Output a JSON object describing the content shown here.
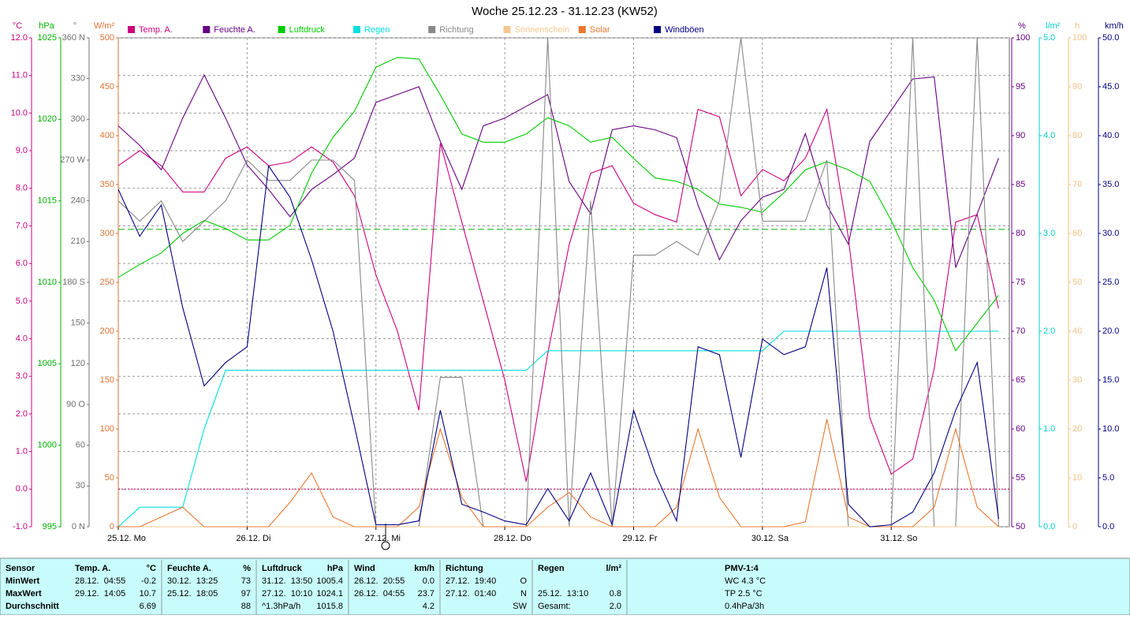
{
  "chart_data": {
    "type": "line",
    "title": "Woche 25.12.23 - 31.12.23 (KW52)",
    "x": [
      0,
      4,
      8,
      12,
      16,
      20,
      24,
      28,
      32,
      36,
      40,
      44,
      48,
      52,
      56,
      60,
      64,
      68,
      72,
      76,
      80,
      84,
      88,
      92,
      96,
      100,
      104,
      108,
      112,
      116,
      120,
      124,
      128,
      132,
      136,
      140,
      144,
      148,
      152,
      156,
      160,
      164
    ],
    "xlim": [
      0,
      166
    ],
    "xticks": [
      {
        "value": 0,
        "label": "25.12. Mo"
      },
      {
        "value": 24,
        "label": "26.12. Di"
      },
      {
        "value": 48,
        "label": "27.12. Mi"
      },
      {
        "value": 72,
        "label": "28.12. Do"
      },
      {
        "value": 96,
        "label": "29.12. Fr"
      },
      {
        "value": 120,
        "label": "30.12. Sa"
      },
      {
        "value": 144,
        "label": "31.12. So"
      }
    ],
    "grid": true,
    "grid_axis": "temp",
    "axes": {
      "temp": {
        "label": "°C",
        "color": "#cc0080",
        "ylim": [
          -1,
          12
        ],
        "yticks": [
          {
            "value": -1,
            "label": "-1.0"
          },
          {
            "value": 0,
            "label": "0.0"
          },
          {
            "value": 1,
            "label": "1.0"
          },
          {
            "value": 2,
            "label": "2.0"
          },
          {
            "value": 3,
            "label": "3.0"
          },
          {
            "value": 4,
            "label": "4.0"
          },
          {
            "value": 5,
            "label": "5.0"
          },
          {
            "value": 6,
            "label": "6.0"
          },
          {
            "value": 7,
            "label": "7.0"
          },
          {
            "value": 8,
            "label": "8.0"
          },
          {
            "value": 9,
            "label": "9.0"
          },
          {
            "value": 10,
            "label": "10.0"
          },
          {
            "value": 11,
            "label": "11.0"
          },
          {
            "value": 12,
            "label": "12.0"
          }
        ]
      },
      "hpa": {
        "label": "hPa",
        "color": "#00b000",
        "ylim": [
          995,
          1025
        ],
        "yticks": [
          995,
          1000,
          1005,
          1010,
          1015,
          1020,
          1025
        ]
      },
      "deg": {
        "label": "°",
        "color": "#707070",
        "ylim": [
          0,
          360
        ],
        "yticks": [
          {
            "value": 0,
            "label": "0 N"
          },
          30,
          60,
          {
            "value": 90,
            "label": "90 O"
          },
          120,
          150,
          {
            "value": 180,
            "label": "180 S"
          },
          210,
          240,
          {
            "value": 270,
            "label": "270 W"
          },
          300,
          330,
          {
            "value": 360,
            "label": "360 N"
          }
        ]
      },
      "solar": {
        "label": "W/m²",
        "color": "#e07030",
        "ylim": [
          0,
          500
        ],
        "yticks": [
          0,
          50,
          100,
          150,
          200,
          250,
          300,
          350,
          400,
          450,
          500
        ]
      },
      "hum": {
        "label": "%",
        "color": "#660080",
        "ylim": [
          50,
          100
        ],
        "yticks": [
          50,
          55,
          60,
          65,
          70,
          75,
          80,
          85,
          90,
          95,
          100
        ]
      },
      "rain": {
        "label": "l/m²",
        "color": "#00cccc",
        "ylim": [
          0,
          5
        ],
        "yticks": [
          {
            "value": 0,
            "label": "0.0"
          },
          {
            "value": 1,
            "label": "1.0"
          },
          {
            "value": 2,
            "label": "2.0"
          },
          {
            "value": 3,
            "label": "3.0"
          },
          {
            "value": 4,
            "label": "4.0"
          },
          {
            "value": 5,
            "label": "5.0"
          }
        ]
      },
      "sun": {
        "label": "h",
        "color": "#f0c080",
        "ylim": [
          0,
          100
        ],
        "yticks": [
          0,
          10,
          20,
          30,
          40,
          50,
          60,
          70,
          80,
          90,
          100
        ]
      },
      "wind": {
        "label": "km/h",
        "color": "#000080",
        "ylim": [
          0,
          50
        ],
        "yticks": [
          {
            "value": 0,
            "label": "0.0"
          },
          {
            "value": 5,
            "label": "5.0"
          },
          {
            "value": 10,
            "label": "10.0"
          },
          {
            "value": 15,
            "label": "15.0"
          },
          {
            "value": 20,
            "label": "20.0"
          },
          {
            "value": 25,
            "label": "25.0"
          },
          {
            "value": 30,
            "label": "30.0"
          },
          {
            "value": 35,
            "label": "35.0"
          },
          {
            "value": 40,
            "label": "40.0"
          },
          {
            "value": 45,
            "label": "45.0"
          },
          {
            "value": 50,
            "label": "50.0"
          }
        ]
      }
    },
    "reference_lines": [
      {
        "axis": "hpa",
        "value": 1013.25,
        "color": "#00b000"
      },
      {
        "axis": "temp",
        "value": 0,
        "color": "#cc0060"
      }
    ],
    "series": [
      {
        "name": "Temp. A.",
        "color": "#cc0080",
        "axis": "temp",
        "values": [
          8.6,
          9.0,
          8.6,
          7.9,
          7.9,
          8.8,
          9.1,
          8.6,
          8.7,
          9.1,
          8.7,
          7.8,
          5.7,
          4.2,
          2.1,
          9.2,
          7.1,
          5.0,
          2.9,
          0.2,
          3.6,
          6.5,
          8.4,
          8.6,
          7.6,
          7.3,
          7.1,
          10.1,
          9.9,
          7.8,
          8.5,
          8.2,
          8.8,
          10.1,
          6.7,
          1.9,
          0.4,
          0.8,
          3.2,
          7.1,
          7.3,
          4.8
        ]
      },
      {
        "name": "Feuchte A.",
        "color": "#660080",
        "axis": "hum",
        "values": [
          91,
          89,
          86.5,
          91.8,
          96.2,
          91.8,
          87,
          84.5,
          81.7,
          84.5,
          86,
          87.7,
          93.4,
          94.2,
          95,
          89.4,
          84.5,
          91,
          91.8,
          93,
          94.2,
          85.3,
          82,
          90.6,
          91,
          90.6,
          89.8,
          82.9,
          77.3,
          81.3,
          83.7,
          84.5,
          90.2,
          82.9,
          78.9,
          89.4,
          92.6,
          95.8,
          96,
          76.5,
          82,
          87.7
        ]
      },
      {
        "name": "Luftdruck",
        "color": "#00cc00",
        "axis": "hpa",
        "values": [
          1010.3,
          1011.1,
          1011.8,
          1013,
          1013.8,
          1013.3,
          1012.6,
          1012.6,
          1013.5,
          1016.7,
          1018.9,
          1020.5,
          1023.2,
          1023.8,
          1023.7,
          1021.5,
          1019.1,
          1018.6,
          1018.6,
          1019.1,
          1020.1,
          1019.6,
          1018.6,
          1018.9,
          1017.6,
          1016.4,
          1016.2,
          1015.7,
          1014.8,
          1014.6,
          1014.3,
          1015.5,
          1016.9,
          1017.4,
          1016.9,
          1016.2,
          1013.8,
          1010.9,
          1008.9,
          1005.8,
          1007.5,
          1009.2
        ]
      },
      {
        "name": "Regen",
        "color": "#00dddd",
        "axis": "rain",
        "values": [
          0,
          0.2,
          0.2,
          0.2,
          1.0,
          1.6,
          1.6,
          1.6,
          1.6,
          1.6,
          1.6,
          1.6,
          1.6,
          1.6,
          1.6,
          1.6,
          1.6,
          1.6,
          1.6,
          1.6,
          1.8,
          1.8,
          1.8,
          1.8,
          1.8,
          1.8,
          1.8,
          1.8,
          1.8,
          1.8,
          1.8,
          2.0,
          2.0,
          2.0,
          2.0,
          2.0,
          2.0,
          2.0,
          2.0,
          2.0,
          2.0,
          2.0
        ]
      },
      {
        "name": "Richtung",
        "color": "#888888",
        "axis": "deg",
        "values": [
          240,
          225,
          240,
          210,
          225,
          240,
          270,
          255,
          255,
          270,
          270,
          255,
          0,
          0,
          0,
          110,
          110,
          0,
          0,
          0,
          360,
          0,
          240,
          0,
          200,
          200,
          210,
          200,
          240,
          360,
          225,
          225,
          225,
          270,
          0,
          0,
          0,
          360,
          0,
          0,
          360,
          0
        ]
      },
      {
        "name": "Sonnenschein",
        "color": "#f5c890",
        "axis": "sun",
        "values": [
          0,
          0,
          0,
          0,
          0,
          0,
          0,
          0,
          0,
          0,
          0,
          0,
          0,
          0,
          0,
          0,
          0,
          0,
          0,
          0,
          0,
          0,
          0,
          0,
          0,
          0,
          0,
          0,
          0,
          0,
          0,
          0,
          0,
          0,
          0,
          0,
          0,
          0,
          0,
          0,
          0,
          0
        ]
      },
      {
        "name": "Solar",
        "color": "#e87830",
        "axis": "solar",
        "values": [
          0,
          0,
          10,
          20,
          0,
          0,
          0,
          0,
          25,
          55,
          10,
          0,
          0,
          0,
          20,
          100,
          30,
          0,
          0,
          0,
          20,
          35,
          10,
          0,
          0,
          0,
          20,
          100,
          30,
          0,
          0,
          0,
          5,
          110,
          10,
          0,
          0,
          0,
          20,
          100,
          20,
          0
        ]
      },
      {
        "name": "Windböen",
        "color": "#000080",
        "axis": "wind",
        "values": [
          34.5,
          29.7,
          32.9,
          22.4,
          14.4,
          16.8,
          18.4,
          36.9,
          33.7,
          27.3,
          20,
          10.3,
          0.2,
          0.2,
          0.6,
          11.9,
          2.3,
          1.5,
          0.6,
          0.2,
          3.9,
          0.6,
          5.5,
          0.2,
          11.9,
          5.5,
          0.6,
          18.4,
          17.6,
          7.1,
          19.2,
          17.6,
          18.4,
          26.5,
          2.3,
          0,
          0.2,
          1.5,
          5.5,
          11.9,
          16.8,
          0.8
        ]
      }
    ]
  },
  "table": {
    "columns": [
      {
        "header": "Sensor",
        "rows": [
          [
            "MinWert"
          ],
          [
            "MaxWert"
          ],
          [
            "Durchschnitt"
          ]
        ]
      },
      {
        "header": "Temp. A.",
        "unit": "°C",
        "rows": [
          [
            "28.12.  04:55",
            "-0.2"
          ],
          [
            "29.12.  14:05",
            "10.7"
          ],
          [
            null,
            "6.69"
          ]
        ]
      },
      {
        "header": "Feuchte A.",
        "unit": "%",
        "rows": [
          [
            "30.12.  13:25",
            "73"
          ],
          [
            "25.12.  18:05",
            "97"
          ],
          [
            null,
            "88"
          ]
        ]
      },
      {
        "header": "Luftdruck",
        "unit": "hPa",
        "rows": [
          [
            "31.12.  13:50",
            "1005.4"
          ],
          [
            "27.12.  10:10",
            "1024.1"
          ],
          [
            "^1.3hPa/h",
            "1015.8"
          ]
        ]
      },
      {
        "header": "Wind",
        "unit": "km/h",
        "rows": [
          [
            "26.12.  20:55",
            "0.0"
          ],
          [
            "26.12.  04:55",
            "23.7"
          ],
          [
            null,
            "4.2"
          ]
        ]
      },
      {
        "header": "Richtung",
        "rows": [
          [
            "27.12.  19:40",
            "O"
          ],
          [
            "27.12.  01:40",
            "N"
          ],
          [
            null,
            "SW"
          ]
        ]
      },
      {
        "header": "Regen",
        "unit": "l/m²",
        "rows": [
          [],
          [
            "25.12.  13:10",
            "0.8"
          ],
          [
            "Gesamt:",
            "2.0"
          ]
        ]
      },
      {
        "header": "PMV-1:4",
        "rows": [
          [
            "WC 4.3 °C"
          ],
          [
            "TP 2.5 °C"
          ],
          [
            "0.4hPa/3h"
          ]
        ]
      }
    ]
  }
}
